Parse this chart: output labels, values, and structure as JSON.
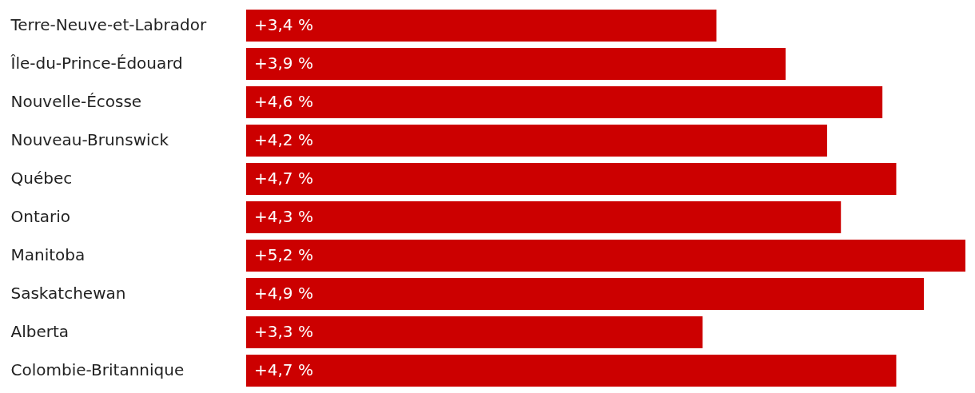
{
  "chart_data": {
    "type": "bar",
    "orientation": "horizontal",
    "categories": [
      "Terre-Neuve-et-Labrador",
      "Île-du-Prince-Édouard",
      "Nouvelle-Écosse",
      "Nouveau-Brunswick",
      "Québec",
      "Ontario",
      "Manitoba",
      "Saskatchewan",
      "Alberta",
      "Colombie-Britannique"
    ],
    "values": [
      3.4,
      3.9,
      4.6,
      4.2,
      4.7,
      4.3,
      5.2,
      4.9,
      3.3,
      4.7
    ],
    "value_labels": [
      "+3,4 %",
      "+3,9 %",
      "+4,6 %",
      "+4,2 %",
      "+4,7 %",
      "+4,3 %",
      "+5,2 %",
      "+4,9 %",
      "+3,3 %",
      "+4,7 %"
    ],
    "color": "#cc0000"
  }
}
